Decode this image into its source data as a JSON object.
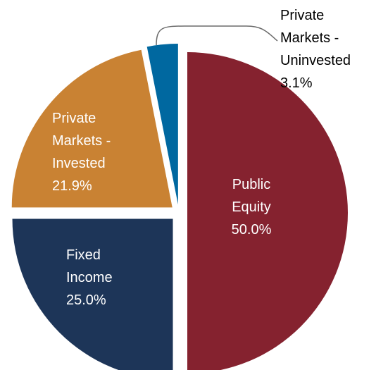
{
  "chart_data": {
    "type": "pie",
    "title": "",
    "slices": [
      {
        "label_lines": [
          "Public",
          "Equity"
        ],
        "value": 50.0,
        "value_text": "50.0%",
        "color": "#85222f",
        "label_color": "#ffffff"
      },
      {
        "label_lines": [
          "Fixed",
          "Income"
        ],
        "value": 25.0,
        "value_text": "25.0%",
        "color": "#1d3558",
        "label_color": "#ffffff"
      },
      {
        "label_lines": [
          "Private",
          "Markets -",
          "Invested"
        ],
        "value": 21.9,
        "value_text": "21.9%",
        "color": "#c98233",
        "label_color": "#ffffff"
      },
      {
        "label_lines": [
          "Private",
          "Markets -",
          "Uninvested"
        ],
        "value": 3.1,
        "value_text": "3.1%",
        "color": "#0068a0",
        "label_color": "#000000"
      }
    ],
    "exploded": true,
    "legend": "none"
  }
}
